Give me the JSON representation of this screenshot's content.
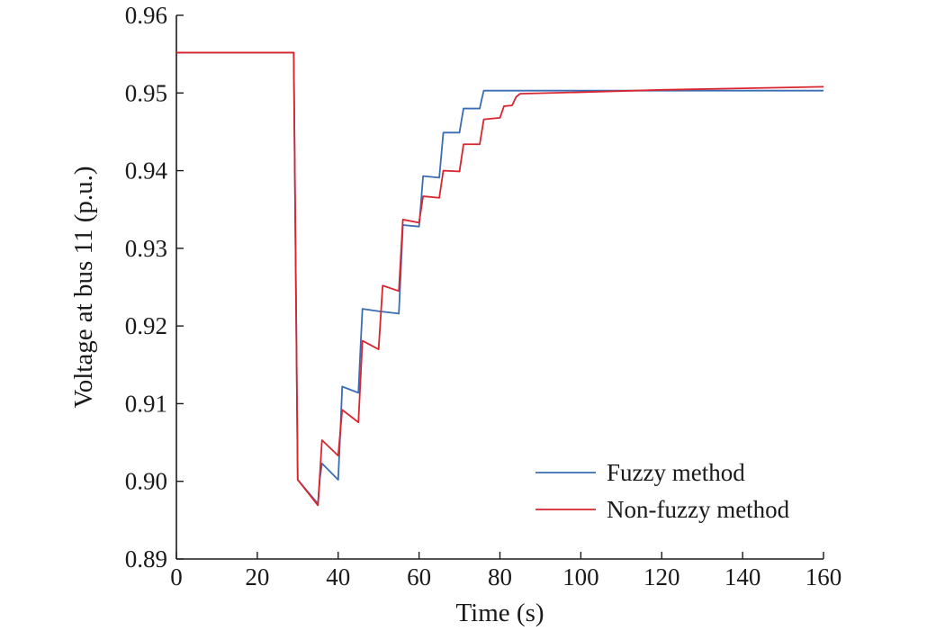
{
  "chart_data": {
    "type": "line",
    "xlabel": "Time (s)",
    "ylabel": "Voltage at bus 11 (p.u.)",
    "xlim": [
      0,
      160
    ],
    "ylim": [
      0.89,
      0.96
    ],
    "xticks": [
      "0",
      "20",
      "40",
      "60",
      "80",
      "100",
      "120",
      "140",
      "160"
    ],
    "yticks": [
      "0.89",
      "0.90",
      "0.91",
      "0.92",
      "0.93",
      "0.94",
      "0.95",
      "0.96"
    ],
    "grid": false,
    "legend_position": "bottom-right",
    "series": [
      {
        "name": "Fuzzy method",
        "color": "#3a6db5",
        "x": [
          0,
          29,
          30,
          35,
          35.5,
          36,
          40,
          40.5,
          41,
          45,
          45.5,
          46,
          50,
          55,
          55.5,
          56,
          60,
          60.5,
          61,
          65,
          65.5,
          66,
          70,
          70.5,
          71,
          75,
          75.5,
          76,
          100,
          160
        ],
        "y": [
          0.9552,
          0.9552,
          0.9002,
          0.8971,
          0.9005,
          0.9023,
          0.9002,
          0.906,
          0.9122,
          0.9114,
          0.917,
          0.9222,
          0.9219,
          0.9216,
          0.9272,
          0.933,
          0.9328,
          0.936,
          0.9393,
          0.9391,
          0.942,
          0.9449,
          0.9449,
          0.9465,
          0.948,
          0.948,
          0.9492,
          0.9503,
          0.9503,
          0.9503
        ]
      },
      {
        "name": "Non-fuzzy method",
        "color": "#d9252e",
        "x": [
          0,
          29,
          30,
          35,
          36,
          40,
          41,
          45,
          46,
          50,
          51,
          55,
          56,
          60,
          61,
          65,
          66,
          70,
          71,
          75,
          76,
          80,
          81,
          83,
          84,
          85,
          100,
          120,
          140,
          160
        ],
        "y": [
          0.9552,
          0.9552,
          0.9002,
          0.8969,
          0.9053,
          0.9033,
          0.9092,
          0.9076,
          0.9181,
          0.917,
          0.9252,
          0.9245,
          0.9337,
          0.9333,
          0.9367,
          0.9365,
          0.94,
          0.9399,
          0.9434,
          0.9434,
          0.9466,
          0.9468,
          0.9483,
          0.9484,
          0.9495,
          0.9499,
          0.9501,
          0.9504,
          0.9506,
          0.9508
        ]
      }
    ]
  }
}
